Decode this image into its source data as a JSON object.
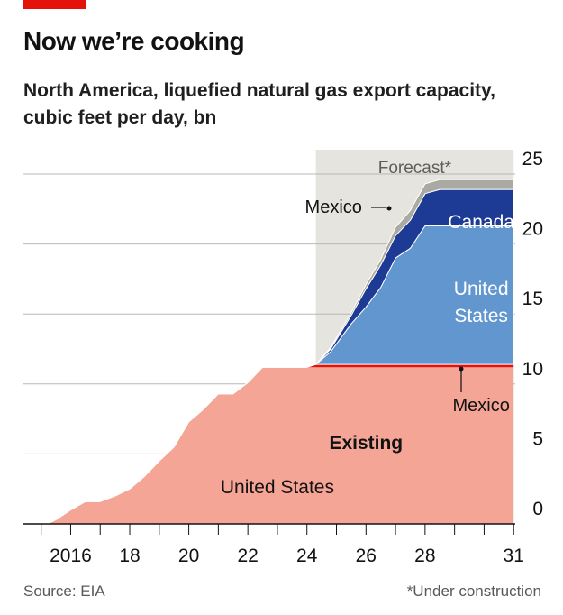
{
  "header": {
    "title": "Now we’re cooking",
    "subtitle": "North America, liquefied natural gas export capacity, cubic feet per day, bn"
  },
  "footer": {
    "source": "Source: EIA",
    "note": "*Under construction"
  },
  "colors": {
    "brand_red": "#e3120b",
    "existing_us": "#f4a595",
    "existing_mexico": "#e3120b",
    "uc_us": "#6196cf",
    "uc_canada": "#1d3a94",
    "uc_mexico": "#aaa9a2",
    "forecast_band": "#e6e4de",
    "grid": "#b8b8b8",
    "axis": "#121212"
  },
  "chart_data": {
    "type": "area",
    "stacked": true,
    "x_unit": "year",
    "ylim": [
      0,
      25
    ],
    "yticks": [
      0,
      5,
      10,
      15,
      20,
      25
    ],
    "y_axis_side": "right",
    "xlim": [
      2014.4,
      2032.0
    ],
    "xticks": [
      2016,
      2018,
      2020,
      2022,
      2024,
      2026,
      2028,
      2031
    ],
    "xtick_labels": [
      "2016",
      "18",
      "20",
      "22",
      "24",
      "26",
      "28",
      "31"
    ],
    "grid": true,
    "forecast_region": {
      "x_start": 2024.3,
      "x_end": 2031.0,
      "label": "Forecast*"
    },
    "x": [
      2014.6,
      2015.2,
      2015.5,
      2016.0,
      2016.5,
      2017.0,
      2017.5,
      2018.0,
      2018.5,
      2019.0,
      2019.5,
      2020.0,
      2020.5,
      2021.0,
      2021.5,
      2022.0,
      2022.5,
      2023.0,
      2023.5,
      2024.0,
      2024.3,
      2024.8,
      2025.5,
      2026.0,
      2026.5,
      2027.0,
      2027.5,
      2028.0,
      2028.5,
      2029.0,
      2030.0,
      2031.0
    ],
    "series": [
      {
        "name": "United States",
        "group": "Existing",
        "values": [
          0,
          0,
          0.3,
          1.0,
          1.6,
          1.6,
          2.0,
          2.5,
          3.4,
          4.5,
          5.5,
          7.3,
          8.2,
          9.3,
          9.3,
          10.1,
          11.2,
          11.2,
          11.2,
          11.2,
          11.2,
          11.2,
          11.2,
          11.2,
          11.2,
          11.2,
          11.2,
          11.2,
          11.2,
          11.2,
          11.2,
          11.2
        ]
      },
      {
        "name": "Mexico",
        "group": "Existing",
        "values": [
          0,
          0,
          0,
          0,
          0,
          0,
          0,
          0,
          0,
          0,
          0,
          0,
          0,
          0,
          0,
          0,
          0,
          0,
          0,
          0,
          0.2,
          0.2,
          0.2,
          0.2,
          0.2,
          0.2,
          0.2,
          0.2,
          0.2,
          0.2,
          0.2,
          0.2
        ]
      },
      {
        "name": "United States",
        "group": "Under construction",
        "values": [
          0,
          0,
          0,
          0,
          0,
          0,
          0,
          0,
          0,
          0,
          0,
          0,
          0,
          0,
          0,
          0,
          0,
          0,
          0,
          0,
          0,
          0.9,
          2.9,
          4.1,
          5.5,
          7.6,
          8.3,
          9.9,
          9.9,
          9.9,
          9.9,
          9.9
        ]
      },
      {
        "name": "Canada",
        "group": "Under construction",
        "values": [
          0,
          0,
          0,
          0,
          0,
          0,
          0,
          0,
          0,
          0,
          0,
          0,
          0,
          0,
          0,
          0,
          0,
          0,
          0,
          0,
          0,
          0.2,
          0.6,
          1.3,
          1.6,
          1.6,
          2.0,
          2.3,
          2.6,
          2.6,
          2.6,
          2.6
        ]
      },
      {
        "name": "Mexico",
        "group": "Under construction",
        "values": [
          0,
          0,
          0,
          0,
          0,
          0,
          0,
          0,
          0,
          0,
          0,
          0,
          0,
          0,
          0,
          0,
          0,
          0,
          0,
          0,
          0,
          0.1,
          0.2,
          0.3,
          0.4,
          0.6,
          0.7,
          0.7,
          0.7,
          0.7,
          0.7,
          0.7
        ]
      }
    ],
    "annotations": [
      {
        "text": "Existing",
        "bold": true
      },
      {
        "text": "United States"
      },
      {
        "text": "United States"
      },
      {
        "text": "Canada"
      },
      {
        "text": "Mexico"
      },
      {
        "text": "Mexico"
      }
    ]
  }
}
